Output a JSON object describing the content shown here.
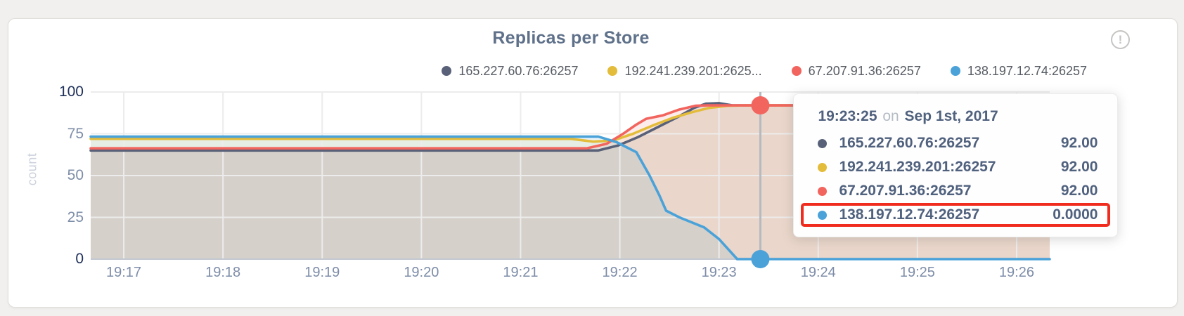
{
  "card": {
    "title": "Replicas per Store",
    "info_icon_glyph": "!"
  },
  "legend": {
    "items": [
      {
        "label": "165.227.60.76:26257",
        "color": "#596179"
      },
      {
        "label": "192.241.239.201:2625...",
        "color": "#e3bc3b"
      },
      {
        "label": "67.207.91.36:26257",
        "color": "#f2655f"
      },
      {
        "label": "138.197.12.74:26257",
        "color": "#4aa2d9"
      }
    ]
  },
  "axes": {
    "ylabel": "count",
    "y_ticks": [
      {
        "label": "100",
        "value": 100
      },
      {
        "label": "75",
        "value": 75
      },
      {
        "label": "50",
        "value": 50
      },
      {
        "label": "25",
        "value": 25
      },
      {
        "label": "0",
        "value": 0
      }
    ]
  },
  "tooltip": {
    "time": "19:23:25",
    "connector": "on",
    "date": "Sep 1st, 2017",
    "annotation_color": "#f02c1e",
    "rows": [
      {
        "name": "165.227.60.76:26257",
        "value": "92.00",
        "color": "#596179",
        "annotated": false
      },
      {
        "name": "192.241.239.201:26257",
        "value": "92.00",
        "color": "#e3bc3b",
        "annotated": false
      },
      {
        "name": "67.207.91.36:26257",
        "value": "92.00",
        "color": "#f2655f",
        "annotated": false
      },
      {
        "name": "138.197.12.74:26257",
        "value": "0.0000",
        "color": "#4aa2d9",
        "annotated": true
      }
    ]
  },
  "chart_data": {
    "type": "line",
    "title": "Replicas per Store",
    "xlabel": "",
    "ylabel": "count",
    "ylim": [
      0,
      100
    ],
    "grid": true,
    "legend_position": "top-right",
    "time_base": "19:17:00 on Sep 1st, 2017 (t = seconds offset)",
    "x_domain_seconds": [
      -20,
      560
    ],
    "x_ticks": [
      {
        "label": "19:17",
        "t": 0
      },
      {
        "label": "19:18",
        "t": 60
      },
      {
        "label": "19:19",
        "t": 120
      },
      {
        "label": "19:20",
        "t": 180
      },
      {
        "label": "19:21",
        "t": 240
      },
      {
        "label": "19:22",
        "t": 300
      },
      {
        "label": "19:23",
        "t": 360
      },
      {
        "label": "19:24",
        "t": 420
      },
      {
        "label": "19:25",
        "t": 480
      },
      {
        "label": "19:26",
        "t": 540
      }
    ],
    "series": [
      {
        "name": "165.227.60.76:26257",
        "color": "#596179",
        "area_opacity": 0.12,
        "points": [
          [
            -20,
            65
          ],
          [
            287,
            65
          ],
          [
            299,
            68
          ],
          [
            311,
            73
          ],
          [
            323,
            79
          ],
          [
            335,
            85
          ],
          [
            345,
            90.5
          ],
          [
            352,
            93
          ],
          [
            360,
            93.3
          ],
          [
            368,
            92
          ],
          [
            560,
            92
          ]
        ]
      },
      {
        "name": "192.241.239.201:26257",
        "color": "#e3bc3b",
        "area_opacity": 0.12,
        "points": [
          [
            -20,
            72
          ],
          [
            270,
            72
          ],
          [
            284,
            70.3
          ],
          [
            296,
            71
          ],
          [
            308,
            75
          ],
          [
            320,
            80
          ],
          [
            332,
            84.5
          ],
          [
            344,
            88
          ],
          [
            354,
            90.5
          ],
          [
            366,
            91.8
          ],
          [
            375,
            92
          ],
          [
            560,
            92
          ]
        ]
      },
      {
        "name": "67.207.91.36:26257",
        "color": "#f2655f",
        "area_opacity": 0.12,
        "points": [
          [
            -20,
            66.3
          ],
          [
            280,
            66.3
          ],
          [
            292,
            69
          ],
          [
            302,
            75
          ],
          [
            310,
            80.5
          ],
          [
            316,
            84
          ],
          [
            326,
            86
          ],
          [
            336,
            89.5
          ],
          [
            346,
            91.8
          ],
          [
            353,
            92
          ],
          [
            560,
            92
          ]
        ]
      },
      {
        "name": "138.197.12.74:26257",
        "color": "#4aa2d9",
        "area_opacity": 0.12,
        "points": [
          [
            -20,
            73.3
          ],
          [
            287,
            73.3
          ],
          [
            298,
            70
          ],
          [
            310,
            64
          ],
          [
            318,
            50
          ],
          [
            324,
            38
          ],
          [
            328,
            29
          ],
          [
            336,
            25
          ],
          [
            351,
            19
          ],
          [
            360,
            12
          ],
          [
            371,
            0
          ],
          [
            560,
            0
          ]
        ]
      }
    ],
    "hover": {
      "t": 385,
      "time_label": "19:23:25",
      "markers": [
        {
          "series": "67.207.91.36:26257",
          "value": 92
        },
        {
          "series": "138.197.12.74:26257",
          "value": 0
        }
      ]
    },
    "annotation": {
      "highlighted_series": "138.197.12.74:26257",
      "highlighted_value": "0.0000"
    }
  }
}
